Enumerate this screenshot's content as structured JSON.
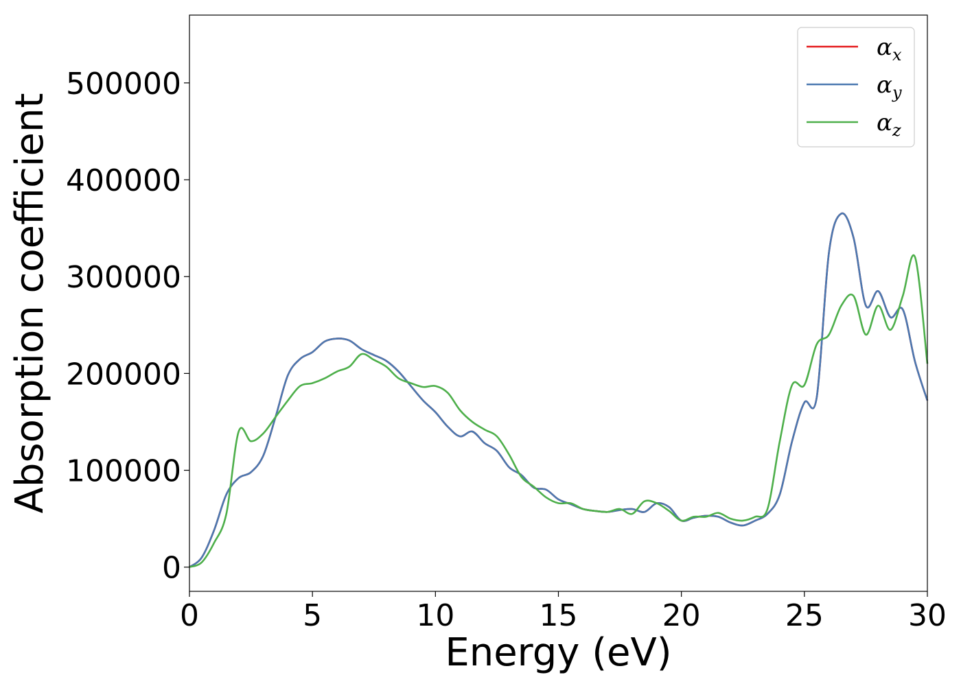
{
  "chart_data": {
    "type": "line",
    "title": "",
    "xlabel": "Energy (eV)",
    "ylabel": "Absorption coefficient",
    "xlim": [
      0,
      30
    ],
    "ylim": [
      -25000,
      570000
    ],
    "xticks": [
      0,
      5,
      10,
      15,
      20,
      25,
      30
    ],
    "yticks": [
      0,
      100000,
      200000,
      300000,
      400000,
      500000
    ],
    "grid": false,
    "legend_position": "top-right",
    "series": [
      {
        "name": "αx",
        "sub": "x",
        "color": "#e41a1c",
        "x": [
          0,
          0.5,
          1,
          1.5,
          2,
          2.5,
          3,
          3.5,
          4,
          4.5,
          5,
          5.5,
          6,
          6.5,
          7,
          7.5,
          8,
          8.5,
          9,
          9.5,
          10,
          10.5,
          11,
          11.5,
          12,
          12.5,
          13,
          13.5,
          14,
          14.5,
          15,
          15.5,
          16,
          16.5,
          17,
          17.5,
          18,
          18.5,
          19,
          19.5,
          20,
          20.5,
          21,
          21.5,
          22,
          22.5,
          23,
          23.5,
          24,
          24.5,
          25,
          25.5,
          26,
          26.5,
          27,
          27.5,
          28,
          28.5,
          29,
          29.5,
          30
        ],
        "values": [
          0,
          10000,
          38000,
          75000,
          92000,
          98000,
          115000,
          155000,
          198000,
          215000,
          222000,
          233000,
          236000,
          234000,
          225000,
          219000,
          213000,
          202000,
          187000,
          172000,
          160000,
          145000,
          135000,
          140000,
          128000,
          120000,
          103000,
          95000,
          82000,
          80000,
          70000,
          65000,
          60000,
          58000,
          57000,
          59000,
          60000,
          57000,
          66000,
          62000,
          48000,
          51000,
          53000,
          52000,
          46000,
          43000,
          48000,
          55000,
          75000,
          130000,
          170000,
          175000,
          325000,
          365000,
          340000,
          270000,
          285000,
          258000,
          266000,
          212000,
          172000
        ]
      },
      {
        "name": "αy",
        "sub": "y",
        "color": "#4a78b0",
        "x": [
          0,
          0.5,
          1,
          1.5,
          2,
          2.5,
          3,
          3.5,
          4,
          4.5,
          5,
          5.5,
          6,
          6.5,
          7,
          7.5,
          8,
          8.5,
          9,
          9.5,
          10,
          10.5,
          11,
          11.5,
          12,
          12.5,
          13,
          13.5,
          14,
          14.5,
          15,
          15.5,
          16,
          16.5,
          17,
          17.5,
          18,
          18.5,
          19,
          19.5,
          20,
          20.5,
          21,
          21.5,
          22,
          22.5,
          23,
          23.5,
          24,
          24.5,
          25,
          25.5,
          26,
          26.5,
          27,
          27.5,
          28,
          28.5,
          29,
          29.5,
          30
        ],
        "values": [
          0,
          10000,
          38000,
          75000,
          92000,
          98000,
          115000,
          155000,
          198000,
          215000,
          222000,
          233000,
          236000,
          234000,
          225000,
          219000,
          213000,
          202000,
          187000,
          172000,
          160000,
          145000,
          135000,
          140000,
          128000,
          120000,
          103000,
          95000,
          82000,
          80000,
          70000,
          65000,
          60000,
          58000,
          57000,
          59000,
          60000,
          57000,
          66000,
          62000,
          48000,
          51000,
          53000,
          52000,
          46000,
          43000,
          48000,
          55000,
          75000,
          130000,
          170000,
          175000,
          325000,
          365000,
          340000,
          270000,
          285000,
          258000,
          266000,
          212000,
          172000
        ]
      },
      {
        "name": "αz",
        "sub": "z",
        "color": "#4daf4a",
        "x": [
          0,
          0.5,
          1,
          1.5,
          2,
          2.5,
          3,
          3.5,
          4,
          4.5,
          5,
          5.5,
          6,
          6.5,
          7,
          7.5,
          8,
          8.5,
          9,
          9.5,
          10,
          10.5,
          11,
          11.5,
          12,
          12.5,
          13,
          13.5,
          14,
          14.5,
          15,
          15.5,
          16,
          16.5,
          17,
          17.5,
          18,
          18.5,
          19,
          19.5,
          20,
          20.5,
          21,
          21.5,
          22,
          22.5,
          23,
          23.5,
          24,
          24.5,
          25,
          25.5,
          26,
          26.5,
          27,
          27.5,
          28,
          28.5,
          29,
          29.5,
          30
        ],
        "values": [
          0,
          5000,
          25000,
          55000,
          140000,
          130000,
          138000,
          155000,
          172000,
          187000,
          190000,
          195000,
          202000,
          207000,
          220000,
          214000,
          207000,
          195000,
          190000,
          186000,
          187000,
          180000,
          162000,
          150000,
          142000,
          135000,
          116000,
          93000,
          83000,
          72000,
          66000,
          66000,
          60000,
          58000,
          57000,
          60000,
          55000,
          68000,
          66000,
          58000,
          48000,
          52000,
          52000,
          56000,
          50000,
          48000,
          52000,
          60000,
          130000,
          188000,
          188000,
          230000,
          240000,
          270000,
          280000,
          240000,
          270000,
          245000,
          280000,
          320000,
          210000
        ]
      }
    ]
  }
}
